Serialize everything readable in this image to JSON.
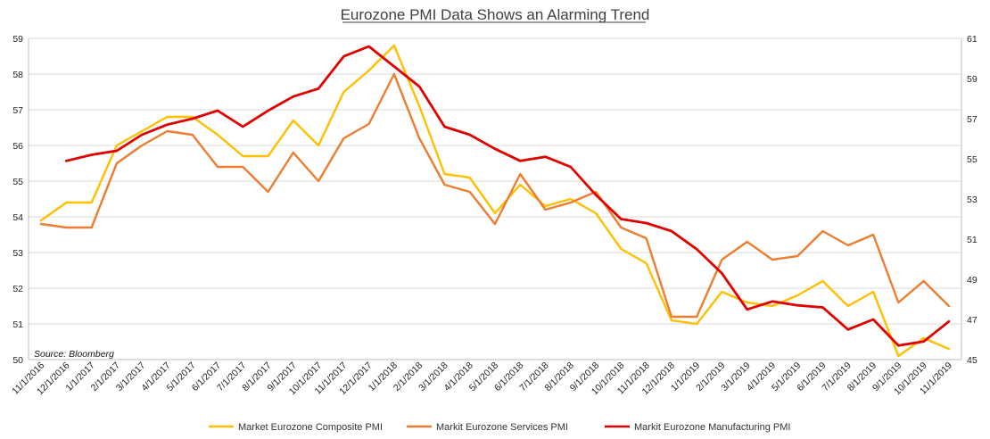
{
  "chart_data": {
    "type": "line",
    "title": "Eurozone PMI Data Shows an Alarming Trend",
    "source": "Source: Bloomberg",
    "x": [
      "11/1/2016",
      "12/1/2016",
      "1/1/2017",
      "2/1/2017",
      "3/1/2017",
      "4/1/2017",
      "5/1/2017",
      "6/1/2017",
      "7/1/2017",
      "8/1/2017",
      "9/1/2017",
      "10/1/2017",
      "11/1/2017",
      "12/1/2017",
      "1/1/2018",
      "2/1/2018",
      "3/1/2018",
      "4/1/2018",
      "5/1/2018",
      "6/1/2018",
      "7/1/2018",
      "8/1/2018",
      "9/1/2018",
      "10/1/2018",
      "11/1/2018",
      "12/1/2018",
      "1/1/2019",
      "2/1/2019",
      "3/1/2019",
      "4/1/2019",
      "5/1/2019",
      "6/1/2019",
      "7/1/2019",
      "8/1/2019",
      "9/1/2019",
      "10/1/2019",
      "11/1/2019"
    ],
    "y_left": {
      "min": 50,
      "max": 59,
      "ticks": [
        "50",
        "51",
        "52",
        "53",
        "54",
        "55",
        "56",
        "57",
        "58",
        "59"
      ]
    },
    "y_right": {
      "min": 45,
      "max": 61,
      "ticks": [
        "45",
        "47",
        "49",
        "51",
        "53",
        "55",
        "57",
        "59",
        "61"
      ]
    },
    "grid": true,
    "legend_position": "bottom",
    "series": [
      {
        "name": "Market Eurozone Composite PMI",
        "axis": "left",
        "color": "#FFC000",
        "values": [
          53.9,
          54.4,
          54.4,
          56.0,
          56.4,
          56.8,
          56.8,
          56.3,
          55.7,
          55.7,
          56.7,
          56.0,
          57.5,
          58.1,
          58.8,
          57.1,
          55.2,
          55.1,
          54.1,
          54.9,
          54.3,
          54.5,
          54.1,
          53.1,
          52.7,
          51.1,
          51.0,
          51.9,
          51.6,
          51.5,
          51.8,
          52.2,
          51.5,
          51.9,
          50.1,
          50.6,
          50.3
        ]
      },
      {
        "name": "Markit Eurozone Services PMI",
        "axis": "left",
        "color": "#ED7D31",
        "values": [
          53.8,
          53.7,
          53.7,
          55.5,
          56.0,
          56.4,
          56.3,
          55.4,
          55.4,
          54.7,
          55.8,
          55.0,
          56.2,
          56.6,
          58.0,
          56.2,
          54.9,
          54.7,
          53.8,
          55.2,
          54.2,
          54.4,
          54.7,
          53.7,
          53.4,
          51.2,
          51.2,
          52.8,
          53.3,
          52.8,
          52.9,
          53.6,
          53.2,
          53.5,
          51.6,
          52.2,
          51.5
        ]
      },
      {
        "name": "Markit Eurozone Manufacturing PMI",
        "axis": "right",
        "color": "#E00000",
        "values": [
          null,
          54.9,
          55.2,
          55.4,
          56.2,
          56.7,
          57.0,
          57.4,
          56.6,
          57.4,
          58.1,
          58.5,
          60.1,
          60.6,
          59.6,
          58.6,
          56.6,
          56.2,
          55.5,
          54.9,
          55.1,
          54.6,
          53.2,
          52.0,
          51.8,
          51.4,
          50.5,
          49.3,
          47.5,
          47.9,
          47.7,
          47.6,
          46.5,
          47.0,
          45.7,
          45.9,
          46.9
        ]
      }
    ]
  }
}
